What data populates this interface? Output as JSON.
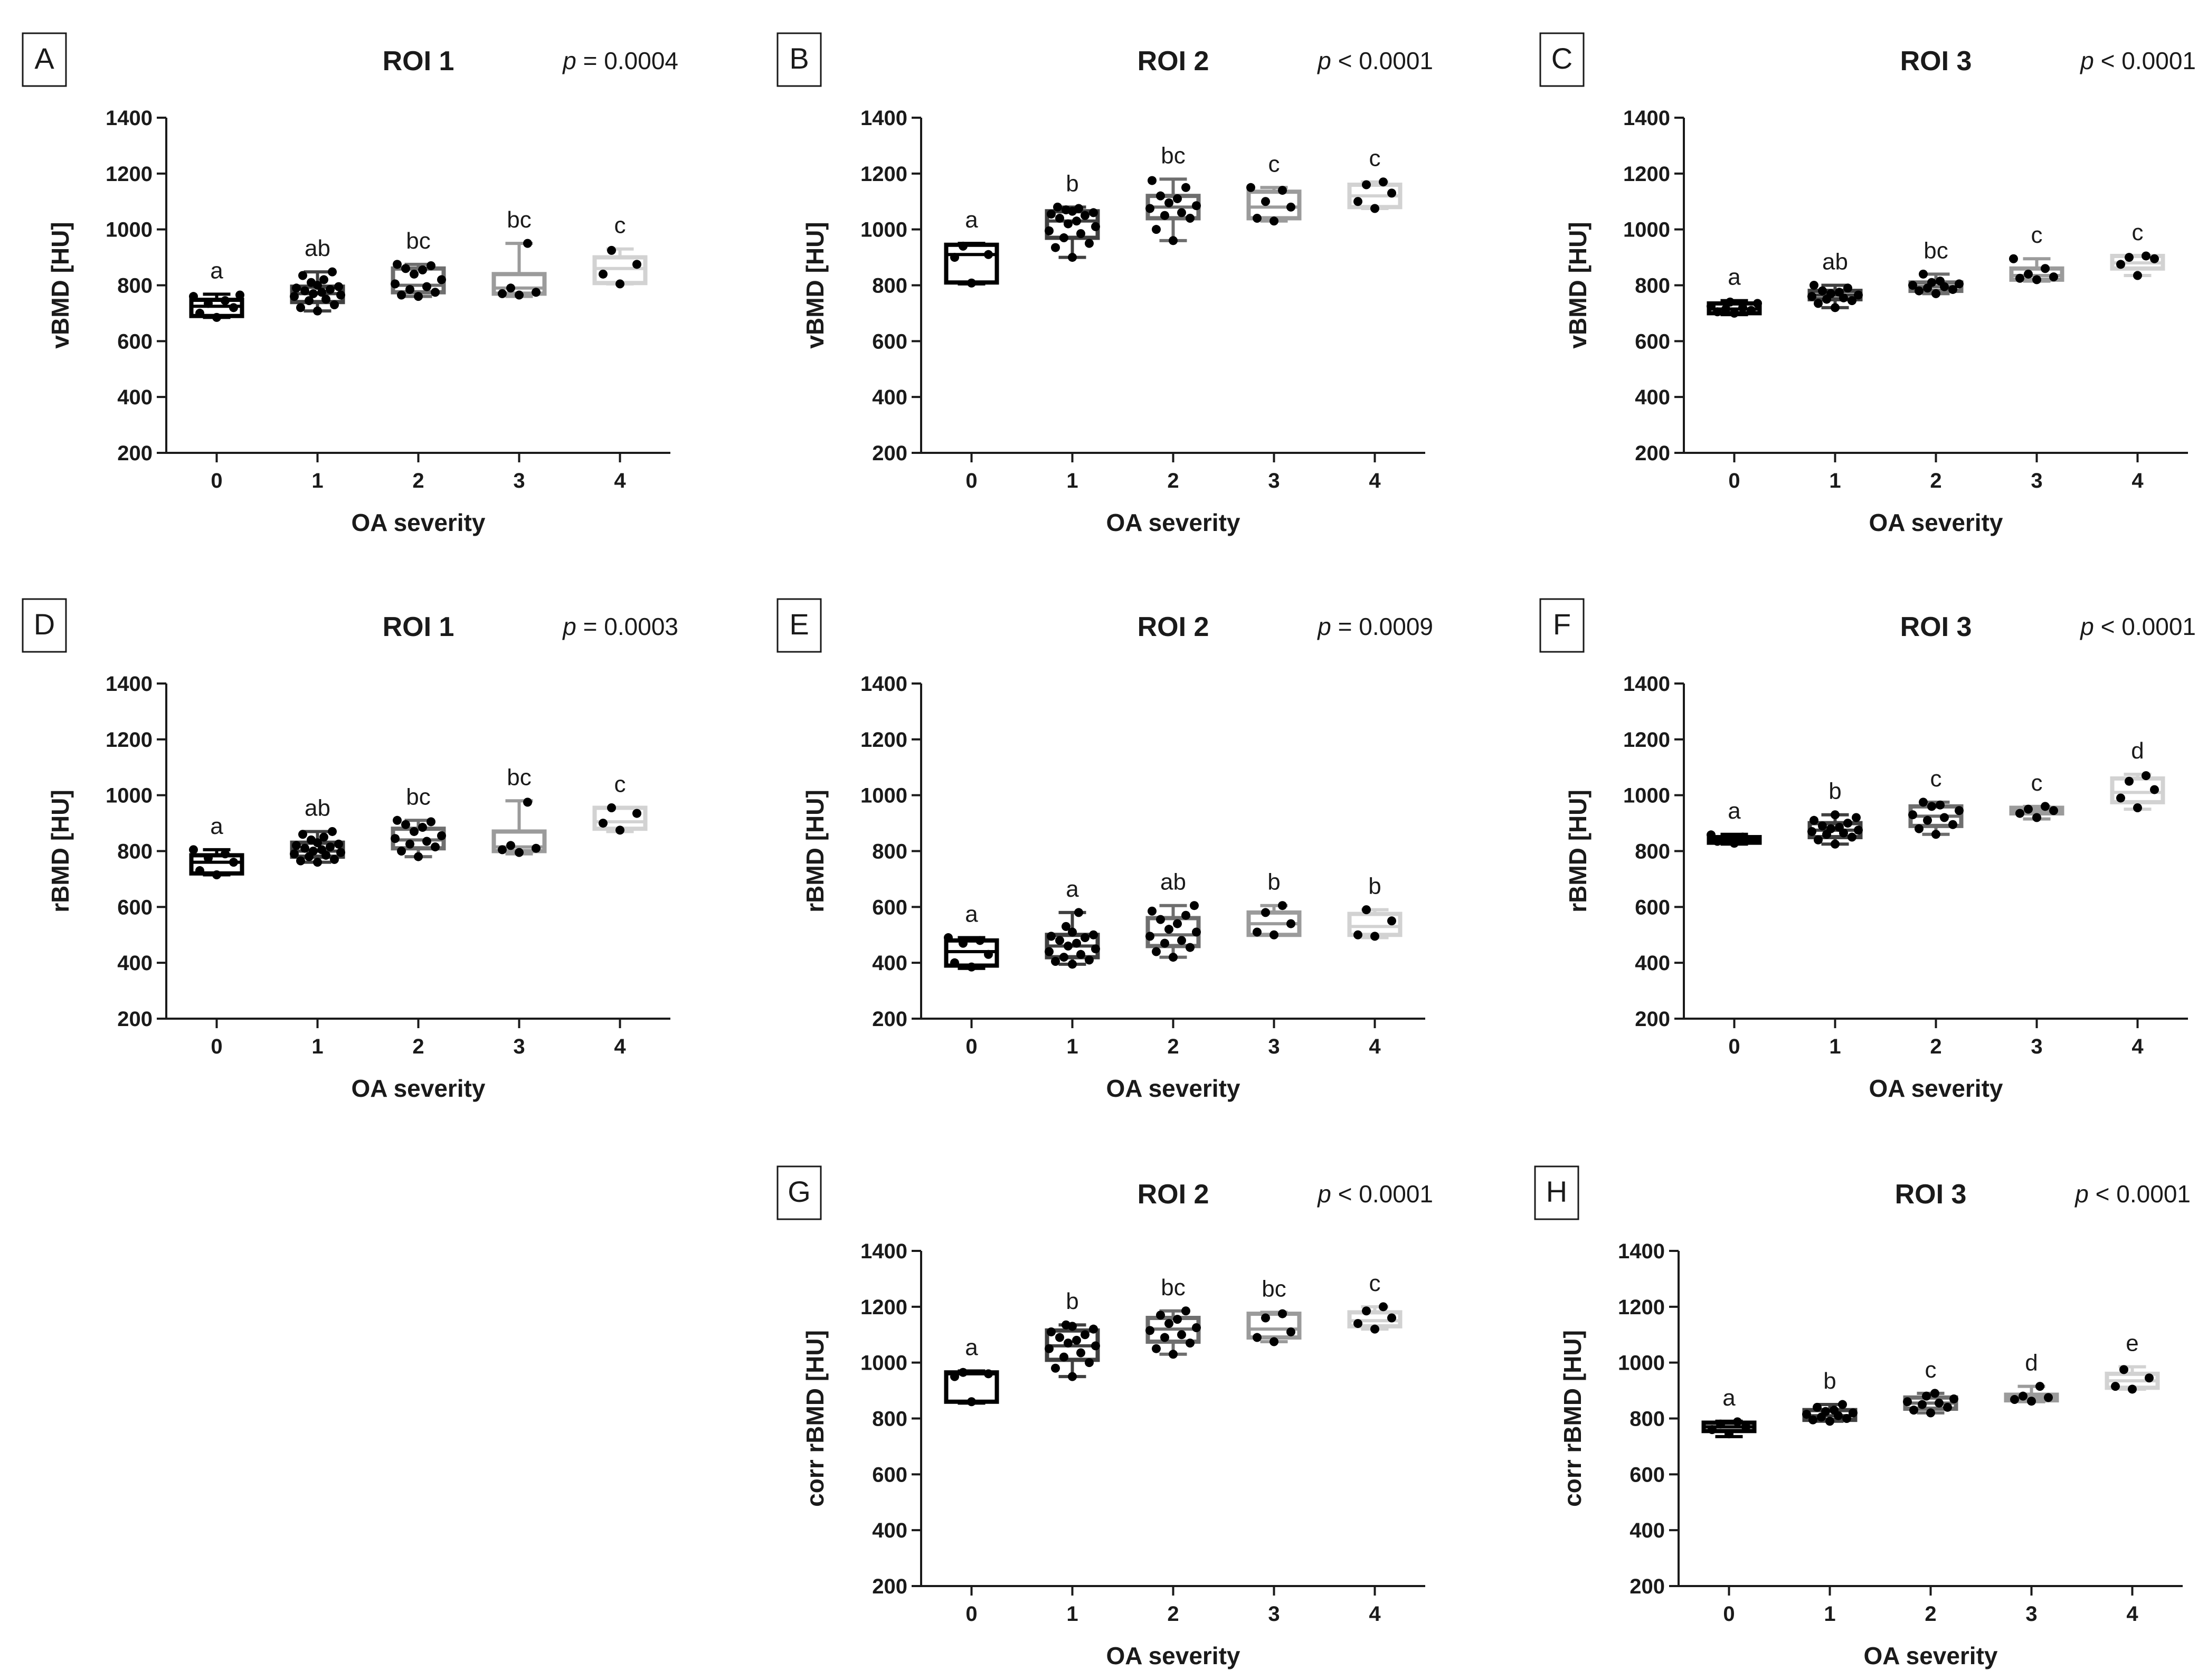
{
  "colors": [
    "#000000",
    "#404040",
    "#6e6e6e",
    "#9b9b9b",
    "#d2d2d2"
  ],
  "chart_data": [
    {
      "id": "A",
      "type": "box",
      "title": "ROI 1",
      "p_prefix": "p",
      "p_rest": " = 0.0004",
      "xlabel": "OA severity",
      "ylabel": "vBMD [HU]",
      "categories": [
        "0",
        "1",
        "2",
        "3",
        "4"
      ],
      "ylim": [
        200,
        1400
      ],
      "yticks": [
        "200",
        "400",
        "600",
        "800",
        "1000",
        "1200",
        "1400"
      ],
      "letters": [
        "a",
        "ab",
        "bc",
        "bc",
        "c"
      ],
      "boxes": [
        {
          "min": 685,
          "q1": 690,
          "median": 725,
          "q3": 748,
          "max": 768,
          "points": [
            685,
            700,
            720,
            735,
            745,
            760,
            765
          ]
        },
        {
          "min": 708,
          "q1": 740,
          "median": 770,
          "q3": 795,
          "max": 848,
          "points": [
            708,
            720,
            730,
            745,
            750,
            760,
            765,
            770,
            775,
            780,
            785,
            790,
            795,
            800,
            810,
            820,
            835,
            848
          ]
        },
        {
          "min": 760,
          "q1": 775,
          "median": 800,
          "q3": 860,
          "max": 875,
          "points": [
            760,
            765,
            775,
            785,
            795,
            805,
            820,
            840,
            855,
            860,
            870,
            875
          ]
        },
        {
          "min": 760,
          "q1": 770,
          "median": 790,
          "q3": 840,
          "max": 950,
          "points": [
            765,
            770,
            775,
            790,
            950
          ]
        },
        {
          "min": 805,
          "q1": 808,
          "median": 860,
          "q3": 900,
          "max": 930,
          "points": [
            805,
            840,
            875,
            925
          ]
        }
      ]
    },
    {
      "id": "B",
      "type": "box",
      "title": "ROI 2",
      "p_prefix": "p",
      "p_rest": " < 0.0001",
      "xlabel": "OA severity",
      "ylabel": "vBMD [HU]",
      "categories": [
        "0",
        "1",
        "2",
        "3",
        "4"
      ],
      "ylim": [
        200,
        1400
      ],
      "yticks": [
        "200",
        "400",
        "600",
        "800",
        "1000",
        "1200",
        "1400"
      ],
      "letters": [
        "a",
        "b",
        "bc",
        "c",
        "c"
      ],
      "boxes": [
        {
          "min": 805,
          "q1": 810,
          "median": 910,
          "q3": 945,
          "max": 950,
          "points": [
            808,
            900,
            910,
            940
          ]
        },
        {
          "min": 900,
          "q1": 970,
          "median": 1030,
          "q3": 1065,
          "max": 1080,
          "points": [
            900,
            935,
            950,
            970,
            985,
            995,
            1010,
            1020,
            1030,
            1040,
            1050,
            1055,
            1060,
            1065,
            1070,
            1075,
            1080
          ]
        },
        {
          "min": 960,
          "q1": 1040,
          "median": 1080,
          "q3": 1120,
          "max": 1180,
          "points": [
            960,
            1000,
            1040,
            1050,
            1060,
            1075,
            1085,
            1095,
            1110,
            1120,
            1150,
            1175
          ]
        },
        {
          "min": 1030,
          "q1": 1040,
          "median": 1080,
          "q3": 1135,
          "max": 1150,
          "points": [
            1030,
            1040,
            1080,
            1100,
            1140,
            1150
          ]
        },
        {
          "min": 1075,
          "q1": 1080,
          "median": 1120,
          "q3": 1160,
          "max": 1170,
          "points": [
            1075,
            1100,
            1130,
            1160,
            1170
          ]
        }
      ]
    },
    {
      "id": "C",
      "type": "box",
      "title": "ROI 3",
      "p_prefix": "p",
      "p_rest": " < 0.0001",
      "xlabel": "OA severity",
      "ylabel": "vBMD [HU]",
      "categories": [
        "0",
        "1",
        "2",
        "3",
        "4"
      ],
      "ylim": [
        200,
        1400
      ],
      "yticks": [
        "200",
        "400",
        "600",
        "800",
        "1000",
        "1200",
        "1400"
      ],
      "letters": [
        "a",
        "ab",
        "bc",
        "c",
        "c"
      ],
      "boxes": [
        {
          "min": 695,
          "q1": 700,
          "median": 715,
          "q3": 735,
          "max": 745,
          "points": [
            700,
            705,
            710,
            715,
            720,
            725,
            735,
            740
          ]
        },
        {
          "min": 720,
          "q1": 750,
          "median": 765,
          "q3": 780,
          "max": 800,
          "points": [
            720,
            735,
            745,
            750,
            755,
            760,
            765,
            770,
            775,
            780,
            790,
            800
          ]
        },
        {
          "min": 770,
          "q1": 780,
          "median": 795,
          "q3": 810,
          "max": 840,
          "points": [
            770,
            780,
            785,
            790,
            795,
            800,
            805,
            810,
            815,
            840
          ]
        },
        {
          "min": 815,
          "q1": 820,
          "median": 835,
          "q3": 860,
          "max": 895,
          "points": [
            820,
            825,
            830,
            840,
            860,
            895
          ]
        },
        {
          "min": 835,
          "q1": 860,
          "median": 880,
          "q3": 905,
          "max": 905,
          "points": [
            835,
            875,
            895,
            900,
            905
          ]
        }
      ]
    },
    {
      "id": "D",
      "type": "box",
      "title": "ROI 1",
      "p_prefix": "p",
      "p_rest": " = 0.0003",
      "xlabel": "OA severity",
      "ylabel": "rBMD [HU]",
      "categories": [
        "0",
        "1",
        "2",
        "3",
        "4"
      ],
      "ylim": [
        200,
        1400
      ],
      "yticks": [
        "200",
        "400",
        "600",
        "800",
        "1000",
        "1200",
        "1400"
      ],
      "letters": [
        "a",
        "ab",
        "bc",
        "bc",
        "c"
      ],
      "boxes": [
        {
          "min": 715,
          "q1": 720,
          "median": 760,
          "q3": 785,
          "max": 805,
          "points": [
            715,
            730,
            760,
            775,
            790,
            805
          ]
        },
        {
          "min": 760,
          "q1": 780,
          "median": 800,
          "q3": 830,
          "max": 870,
          "points": [
            760,
            765,
            770,
            780,
            785,
            790,
            795,
            800,
            805,
            810,
            815,
            820,
            825,
            830,
            840,
            850,
            860,
            870
          ]
        },
        {
          "min": 780,
          "q1": 810,
          "median": 840,
          "q3": 880,
          "max": 910,
          "points": [
            780,
            800,
            815,
            825,
            835,
            845,
            855,
            870,
            885,
            895,
            905,
            910
          ]
        },
        {
          "min": 790,
          "q1": 800,
          "median": 815,
          "q3": 870,
          "max": 980,
          "points": [
            795,
            805,
            810,
            820,
            975
          ]
        },
        {
          "min": 870,
          "q1": 880,
          "median": 905,
          "q3": 955,
          "max": 955,
          "points": [
            875,
            900,
            935,
            955
          ]
        }
      ]
    },
    {
      "id": "E",
      "type": "box",
      "title": "ROI 2",
      "p_prefix": "p",
      "p_rest": " = 0.0009",
      "xlabel": "OA severity",
      "ylabel": "rBMD [HU]",
      "categories": [
        "0",
        "1",
        "2",
        "3",
        "4"
      ],
      "ylim": [
        200,
        1400
      ],
      "yticks": [
        "200",
        "400",
        "600",
        "800",
        "1000",
        "1200",
        "1400"
      ],
      "letters": [
        "a",
        "a",
        "ab",
        "b",
        "b"
      ],
      "boxes": [
        {
          "min": 380,
          "q1": 390,
          "median": 440,
          "q3": 480,
          "max": 490,
          "points": [
            385,
            400,
            430,
            470,
            480,
            490
          ]
        },
        {
          "min": 395,
          "q1": 420,
          "median": 460,
          "q3": 500,
          "max": 580,
          "points": [
            395,
            405,
            410,
            420,
            430,
            440,
            450,
            460,
            470,
            480,
            490,
            495,
            500,
            510,
            530,
            580
          ]
        },
        {
          "min": 420,
          "q1": 460,
          "median": 500,
          "q3": 560,
          "max": 605,
          "points": [
            420,
            440,
            455,
            470,
            480,
            495,
            510,
            520,
            540,
            555,
            570,
            585,
            605
          ]
        },
        {
          "min": 500,
          "q1": 500,
          "median": 540,
          "q3": 580,
          "max": 605,
          "points": [
            500,
            510,
            540,
            580,
            605
          ]
        },
        {
          "min": 490,
          "q1": 500,
          "median": 530,
          "q3": 575,
          "max": 590,
          "points": [
            495,
            500,
            550,
            590
          ]
        }
      ]
    },
    {
      "id": "F",
      "type": "box",
      "title": "ROI 3",
      "p_prefix": "p",
      "p_rest": " < 0.0001",
      "xlabel": "OA severity",
      "ylabel": "rBMD [HU]",
      "categories": [
        "0",
        "1",
        "2",
        "3",
        "4"
      ],
      "ylim": [
        200,
        1400
      ],
      "yticks": [
        "200",
        "400",
        "600",
        "800",
        "1000",
        "1200",
        "1400"
      ],
      "letters": [
        "a",
        "b",
        "c",
        "c",
        "d"
      ],
      "boxes": [
        {
          "min": 825,
          "q1": 830,
          "median": 840,
          "q3": 850,
          "max": 860,
          "points": [
            828,
            835,
            840,
            845,
            850,
            858
          ]
        },
        {
          "min": 825,
          "q1": 850,
          "median": 875,
          "q3": 900,
          "max": 930,
          "points": [
            825,
            840,
            850,
            860,
            865,
            870,
            875,
            880,
            885,
            890,
            900,
            910,
            920,
            930
          ]
        },
        {
          "min": 860,
          "q1": 890,
          "median": 925,
          "q3": 960,
          "max": 975,
          "points": [
            860,
            880,
            895,
            910,
            920,
            930,
            945,
            960,
            965,
            975
          ]
        },
        {
          "min": 915,
          "q1": 935,
          "median": 945,
          "q3": 955,
          "max": 960,
          "points": [
            920,
            935,
            945,
            950,
            960
          ]
        },
        {
          "min": 950,
          "q1": 975,
          "median": 1010,
          "q3": 1060,
          "max": 1075,
          "points": [
            955,
            990,
            1020,
            1050,
            1070
          ]
        }
      ]
    },
    {
      "id": "G",
      "type": "box",
      "title": "ROI 2",
      "p_prefix": "p",
      "p_rest": " < 0.0001",
      "xlabel": "OA severity",
      "ylabel": "corr rBMD [HU]",
      "categories": [
        "0",
        "1",
        "2",
        "3",
        "4"
      ],
      "ylim": [
        200,
        1400
      ],
      "yticks": [
        "200",
        "400",
        "600",
        "800",
        "1000",
        "1200",
        "1400"
      ],
      "letters": [
        "a",
        "b",
        "bc",
        "bc",
        "c"
      ],
      "boxes": [
        {
          "min": 855,
          "q1": 860,
          "median": 960,
          "q3": 965,
          "max": 970,
          "points": [
            860,
            950,
            960,
            965
          ]
        },
        {
          "min": 950,
          "q1": 1010,
          "median": 1060,
          "q3": 1115,
          "max": 1135,
          "points": [
            950,
            980,
            1000,
            1020,
            1035,
            1050,
            1060,
            1070,
            1080,
            1090,
            1100,
            1110,
            1120,
            1130,
            1135
          ]
        },
        {
          "min": 1030,
          "q1": 1075,
          "median": 1120,
          "q3": 1160,
          "max": 1185,
          "points": [
            1030,
            1050,
            1070,
            1090,
            1100,
            1115,
            1125,
            1140,
            1155,
            1170,
            1185
          ]
        },
        {
          "min": 1075,
          "q1": 1090,
          "median": 1120,
          "q3": 1175,
          "max": 1180,
          "points": [
            1075,
            1090,
            1110,
            1160,
            1175
          ]
        },
        {
          "min": 1120,
          "q1": 1130,
          "median": 1150,
          "q3": 1180,
          "max": 1200,
          "points": [
            1120,
            1140,
            1160,
            1185,
            1200
          ]
        }
      ]
    },
    {
      "id": "H",
      "type": "box",
      "title": "ROI 3",
      "p_prefix": "p",
      "p_rest": " < 0.0001",
      "xlabel": "OA severity",
      "ylabel": "corr rBMD [HU]",
      "categories": [
        "0",
        "1",
        "2",
        "3",
        "4"
      ],
      "ylim": [
        200,
        1400
      ],
      "yticks": [
        "200",
        "400",
        "600",
        "800",
        "1000",
        "1200",
        "1400"
      ],
      "letters": [
        "a",
        "b",
        "c",
        "d",
        "e"
      ],
      "boxes": [
        {
          "min": 735,
          "q1": 755,
          "median": 770,
          "q3": 785,
          "max": 790,
          "points": [
            745,
            760,
            770,
            780,
            788
          ]
        },
        {
          "min": 790,
          "q1": 795,
          "median": 810,
          "q3": 830,
          "max": 850,
          "points": [
            790,
            795,
            800,
            805,
            810,
            815,
            820,
            825,
            830,
            840,
            850
          ]
        },
        {
          "min": 820,
          "q1": 835,
          "median": 855,
          "q3": 875,
          "max": 890,
          "points": [
            820,
            830,
            840,
            850,
            855,
            860,
            870,
            880,
            890
          ]
        },
        {
          "min": 860,
          "q1": 865,
          "median": 875,
          "q3": 885,
          "max": 915,
          "points": [
            862,
            868,
            875,
            880,
            915
          ]
        },
        {
          "min": 905,
          "q1": 910,
          "median": 935,
          "q3": 960,
          "max": 985,
          "points": [
            905,
            915,
            945,
            975
          ]
        }
      ]
    }
  ]
}
